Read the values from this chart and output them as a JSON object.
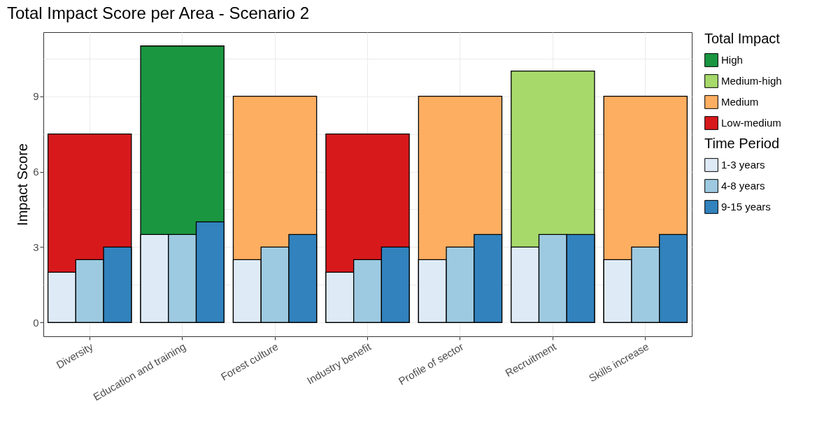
{
  "chart_data": {
    "type": "bar",
    "title": "Total Impact Score per Area - Scenario 2",
    "ylabel": "Impact Score",
    "legend_title": [
      "Total Impact",
      "Time Period"
    ],
    "categories": [
      "Diversity",
      "Education and training",
      "Forest culture",
      "Industry benefit",
      "Profile of sector",
      "Recruitment",
      "Skills increase"
    ],
    "series": [
      {
        "name": "High",
        "color": "#1a9641",
        "values": [
          null,
          11,
          null,
          null,
          null,
          null,
          null
        ]
      },
      {
        "name": "Medium-high",
        "color": "#a6d96a",
        "values": [
          null,
          null,
          null,
          null,
          null,
          10,
          null
        ]
      },
      {
        "name": "Medium",
        "color": "#fdae61",
        "values": [
          null,
          null,
          9,
          null,
          9,
          null,
          9
        ]
      },
      {
        "name": "Low-medium",
        "color": "#d7191c",
        "values": [
          7.5,
          null,
          null,
          7.5,
          null,
          null,
          null
        ]
      },
      {
        "name": "1-3 years",
        "color": "#deebf7",
        "values": [
          2,
          3.5,
          2.5,
          2,
          2.5,
          3,
          2.5
        ]
      },
      {
        "name": "4-8 years",
        "color": "#9ecae1",
        "values": [
          2.5,
          3.5,
          3,
          2.5,
          3,
          3.5,
          3
        ]
      },
      {
        "name": "9-15 years",
        "color": "#3182bd",
        "values": [
          3,
          4,
          3.5,
          3,
          3.5,
          3.5,
          3.5
        ]
      }
    ],
    "ylim": [
      -0.55,
      11.55
    ],
    "yticks": [
      0,
      {
        "value": 1.5,
        "label": null
      },
      3,
      {
        "value": 4.5,
        "label": null
      },
      6,
      {
        "value": 7.5,
        "label": null
      },
      9,
      {
        "value": 10.5,
        "label": null
      }
    ],
    "grid": true,
    "legend": "right"
  }
}
